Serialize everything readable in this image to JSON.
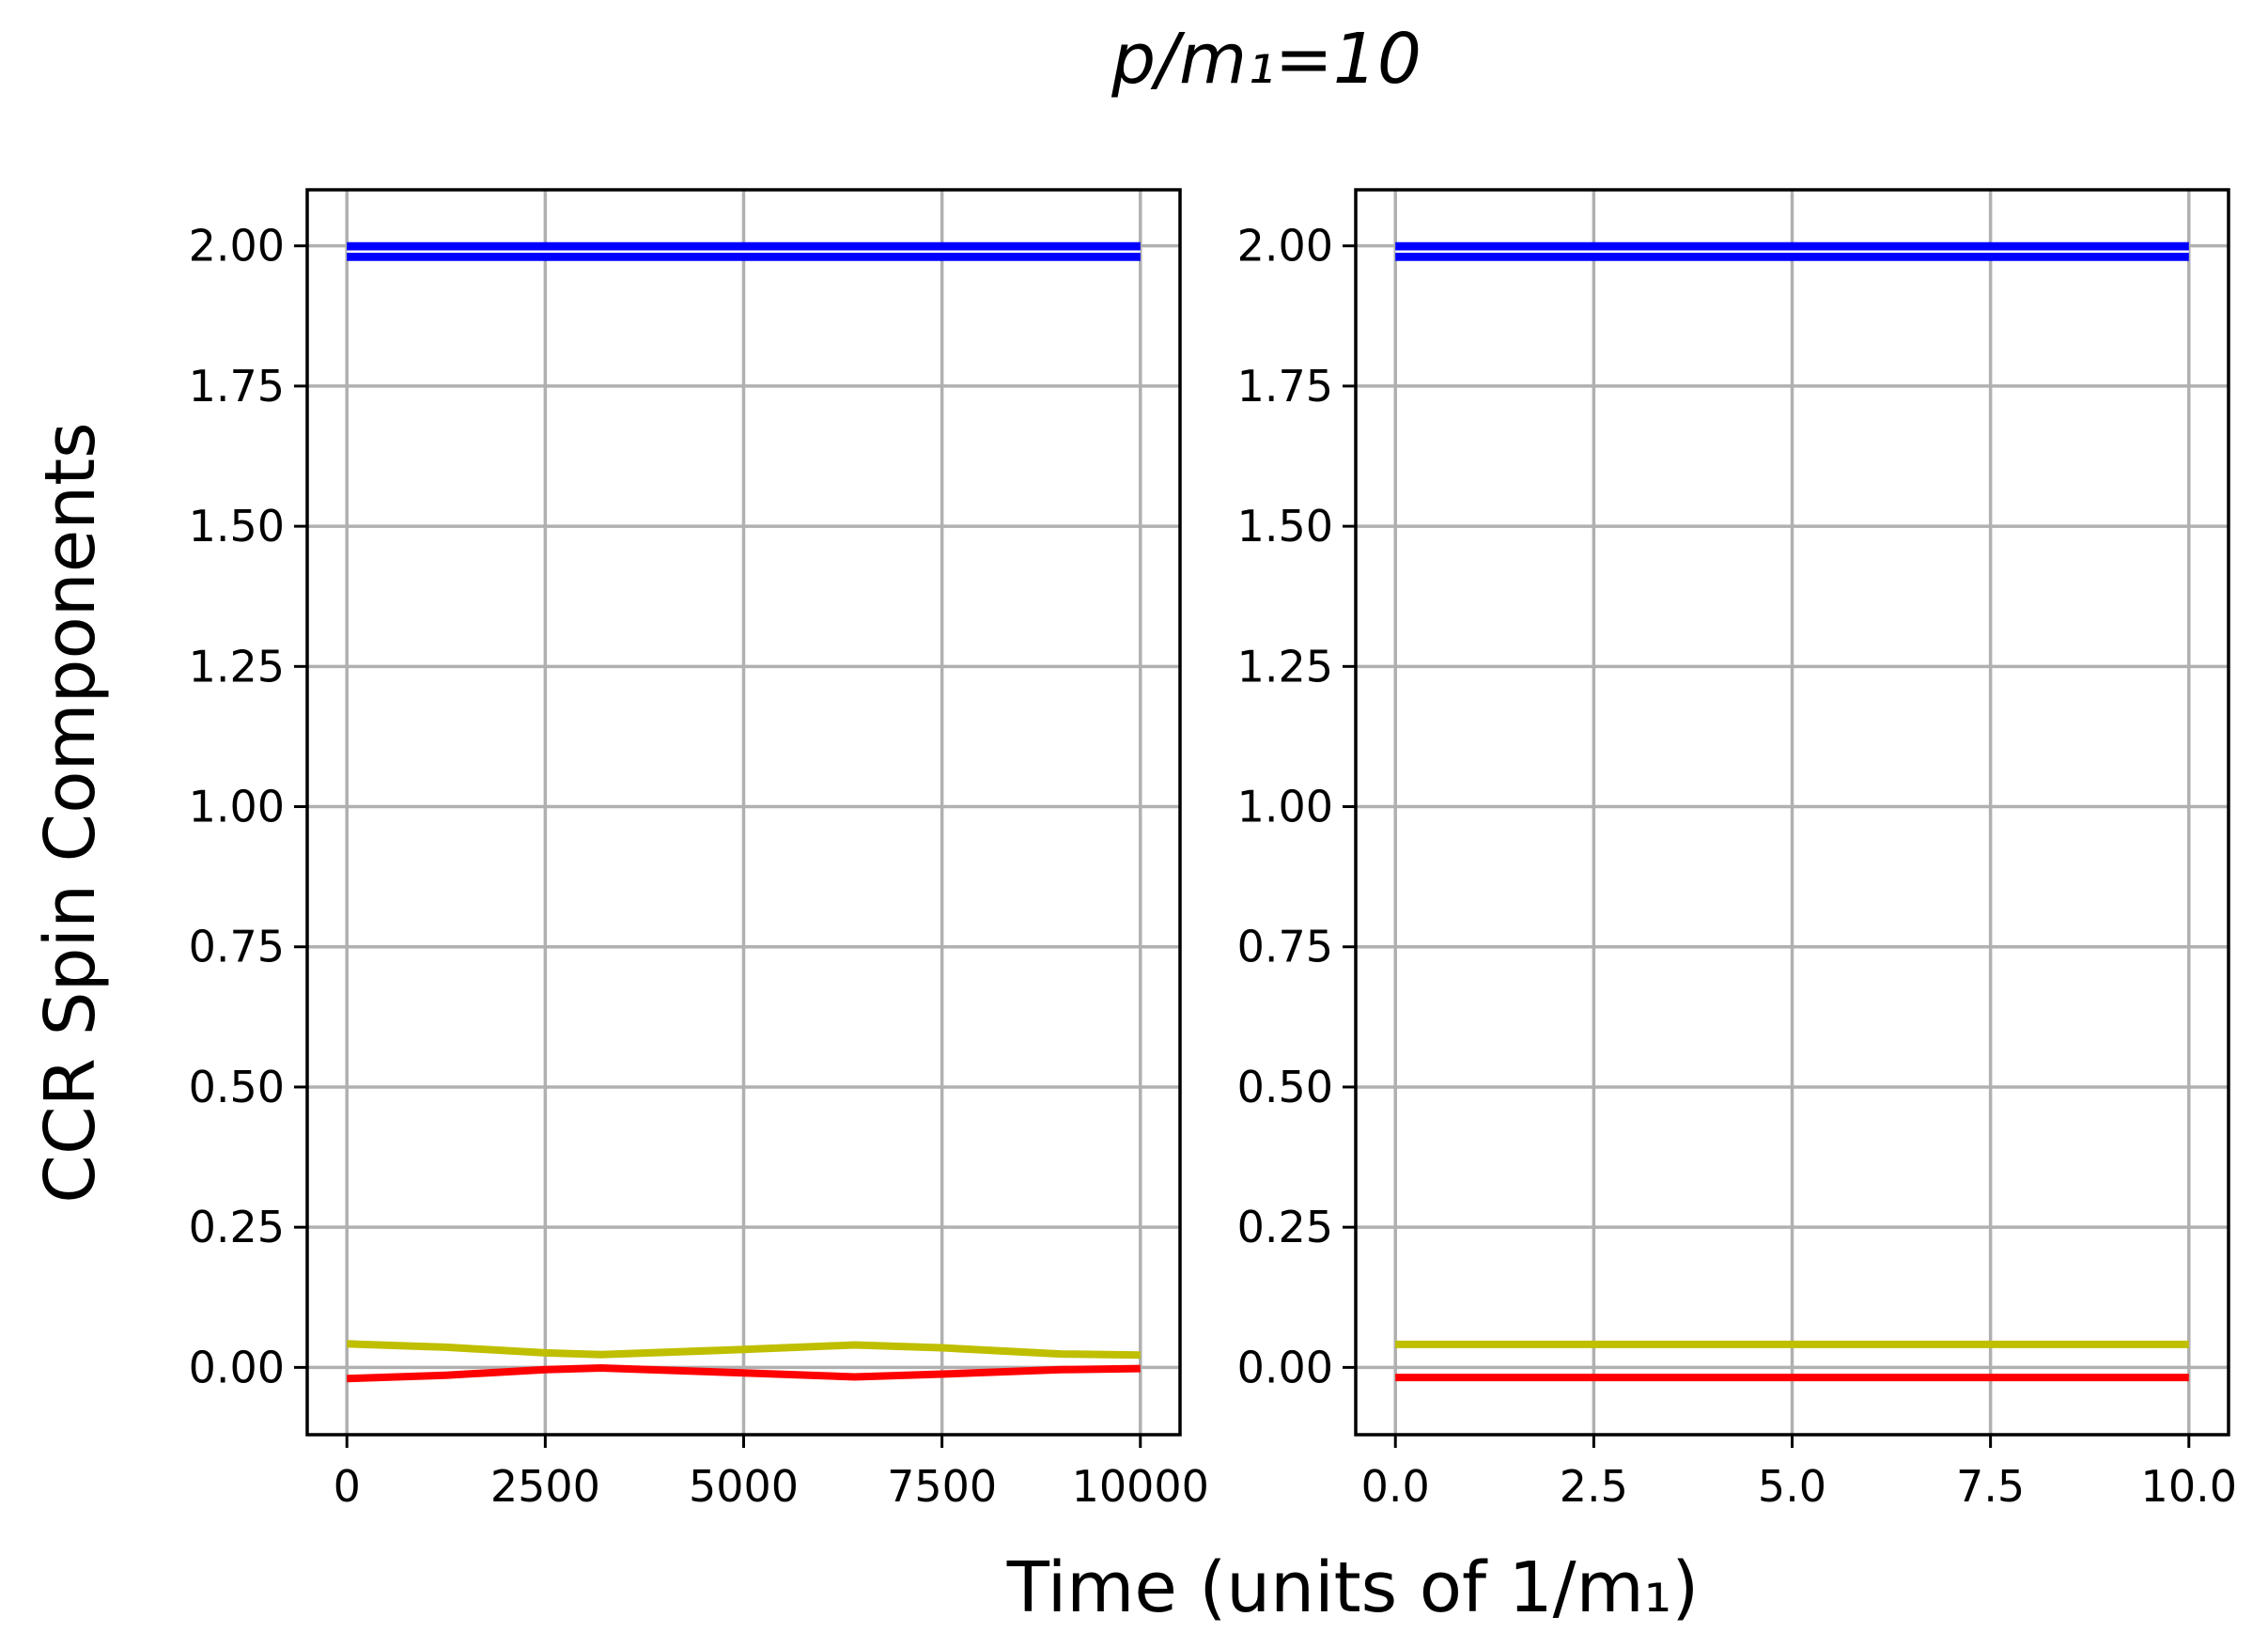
{
  "figure": {
    "title": "p/m₁=10",
    "xlabel": "Time (units of 1/m₁)",
    "ylabel": "CCR Spin Components"
  },
  "chart_data": [
    {
      "type": "line",
      "xlim": [
        -500,
        10500
      ],
      "ylim": [
        -0.12,
        2.1
      ],
      "grid": true,
      "xticks": [
        0,
        2500,
        5000,
        7500,
        10000
      ],
      "xtick_labels": [
        "0",
        "2500",
        "5000",
        "7500",
        "10000"
      ],
      "yticks": [
        0,
        0.25,
        0.5,
        0.75,
        1.0,
        1.25,
        1.5,
        1.75,
        2.0
      ],
      "ytick_labels": [
        "0.00",
        "0.25",
        "0.50",
        "0.75",
        "1.00",
        "1.25",
        "1.50",
        "1.75",
        "2.00"
      ],
      "series": [
        {
          "color": "#0000ff",
          "x": [
            0,
            10000
          ],
          "y": [
            1.99,
            1.99
          ]
        },
        {
          "color": "#bfbf00",
          "x": [
            0,
            1250,
            2500,
            3200,
            5000,
            6400,
            7500,
            9000,
            10000
          ],
          "y": [
            0.042,
            0.036,
            0.026,
            0.023,
            0.032,
            0.04,
            0.035,
            0.024,
            0.022
          ]
        },
        {
          "color": "#ff0000",
          "x": [
            0,
            1250,
            2500,
            3200,
            5000,
            6400,
            7500,
            9000,
            10000
          ],
          "y": [
            -0.02,
            -0.014,
            -0.004,
            -0.001,
            -0.01,
            -0.017,
            -0.012,
            -0.004,
            -0.002
          ]
        }
      ]
    },
    {
      "type": "line",
      "xlim": [
        -0.5,
        10.5
      ],
      "ylim": [
        -0.12,
        2.1
      ],
      "grid": true,
      "xticks": [
        0,
        2.5,
        5,
        7.5,
        10
      ],
      "xtick_labels": [
        "0.0",
        "2.5",
        "5.0",
        "7.5",
        "10.0"
      ],
      "yticks": [
        0,
        0.25,
        0.5,
        0.75,
        1.0,
        1.25,
        1.5,
        1.75,
        2.0
      ],
      "ytick_labels": [
        "0.00",
        "0.25",
        "0.50",
        "0.75",
        "1.00",
        "1.25",
        "1.50",
        "1.75",
        "2.00"
      ],
      "series": [
        {
          "color": "#0000ff",
          "x": [
            0,
            10
          ],
          "y": [
            1.99,
            1.99
          ]
        },
        {
          "color": "#bfbf00",
          "x": [
            0,
            2.5,
            5,
            7.5,
            10
          ],
          "y": [
            0.041,
            0.041,
            0.041,
            0.041,
            0.041
          ]
        },
        {
          "color": "#ff0000",
          "x": [
            0,
            2.5,
            5,
            7.5,
            10
          ],
          "y": [
            -0.018,
            -0.018,
            -0.018,
            -0.018,
            -0.018
          ]
        }
      ]
    }
  ]
}
